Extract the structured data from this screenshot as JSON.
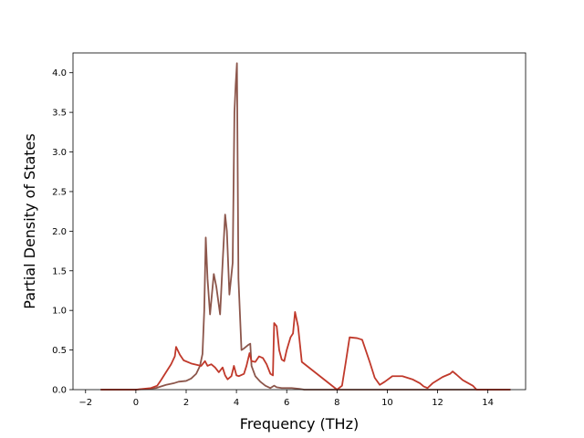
{
  "chart_data": {
    "type": "line",
    "xlabel": "Frequency (THz)",
    "ylabel": "Partial Density of States",
    "xlim": [
      -2.5,
      15.5
    ],
    "ylim": [
      0,
      4.25
    ],
    "xticks": [
      -2,
      0,
      2,
      4,
      6,
      8,
      10,
      12,
      14
    ],
    "yticks": [
      0.0,
      0.5,
      1.0,
      1.5,
      2.0,
      2.5,
      3.0,
      3.5,
      4.0
    ],
    "xtick_labels": [
      "−2",
      "0",
      "2",
      "4",
      "6",
      "8",
      "10",
      "12",
      "14"
    ],
    "ytick_labels": [
      "0.0",
      "0.5",
      "1.0",
      "1.5",
      "2.0",
      "2.5",
      "3.0",
      "3.5",
      "4.0"
    ],
    "grid": false,
    "legend": "none",
    "series": [
      {
        "color": "#8c564b",
        "x": [
          -1.4,
          0.0,
          0.5,
          0.8,
          1.0,
          1.2,
          1.5,
          1.7,
          2.0,
          2.2,
          2.4,
          2.55,
          2.65,
          2.72,
          2.78,
          2.85,
          2.95,
          3.1,
          3.2,
          3.35,
          3.45,
          3.55,
          3.62,
          3.72,
          3.85,
          3.92,
          3.97,
          4.02,
          4.08,
          4.2,
          4.3,
          4.45,
          4.55,
          4.6,
          4.75,
          4.95,
          5.15,
          5.35,
          5.5,
          5.6,
          5.8,
          6.0,
          6.2,
          6.5,
          6.7,
          14.9
        ],
        "y": [
          0.0,
          0.0,
          0.01,
          0.02,
          0.04,
          0.06,
          0.08,
          0.1,
          0.11,
          0.14,
          0.2,
          0.3,
          0.45,
          1.0,
          1.92,
          1.4,
          0.95,
          1.46,
          1.3,
          0.95,
          1.6,
          2.21,
          2.0,
          1.2,
          1.6,
          3.5,
          3.85,
          4.12,
          1.4,
          0.5,
          0.52,
          0.56,
          0.58,
          0.3,
          0.17,
          0.1,
          0.05,
          0.02,
          0.05,
          0.03,
          0.02,
          0.02,
          0.02,
          0.01,
          0.0,
          0.0
        ]
      },
      {
        "color": "#c0392b",
        "x": [
          -1.4,
          0.0,
          0.6,
          0.85,
          1.0,
          1.2,
          1.4,
          1.55,
          1.6,
          1.75,
          1.9,
          2.2,
          2.6,
          2.75,
          2.85,
          3.0,
          3.15,
          3.3,
          3.45,
          3.55,
          3.65,
          3.8,
          3.9,
          4.0,
          4.1,
          4.3,
          4.4,
          4.52,
          4.6,
          4.75,
          4.9,
          5.05,
          5.2,
          5.35,
          5.45,
          5.5,
          5.6,
          5.7,
          5.8,
          5.9,
          6.0,
          6.15,
          6.25,
          6.33,
          6.45,
          6.6,
          8.0,
          8.2,
          8.35,
          8.5,
          8.8,
          9.0,
          9.3,
          9.5,
          9.7,
          9.9,
          10.2,
          10.6,
          11.0,
          11.3,
          11.45,
          11.6,
          11.8,
          12.2,
          12.5,
          12.6,
          12.75,
          13.0,
          13.4,
          13.55,
          14.9
        ],
        "y": [
          0.0,
          0.0,
          0.02,
          0.05,
          0.12,
          0.22,
          0.32,
          0.42,
          0.54,
          0.44,
          0.37,
          0.33,
          0.3,
          0.36,
          0.3,
          0.32,
          0.28,
          0.22,
          0.28,
          0.18,
          0.13,
          0.17,
          0.3,
          0.18,
          0.17,
          0.2,
          0.3,
          0.46,
          0.36,
          0.35,
          0.42,
          0.4,
          0.32,
          0.2,
          0.18,
          0.84,
          0.8,
          0.5,
          0.38,
          0.36,
          0.5,
          0.66,
          0.71,
          0.98,
          0.8,
          0.35,
          0.0,
          0.05,
          0.35,
          0.66,
          0.65,
          0.63,
          0.35,
          0.15,
          0.06,
          0.1,
          0.17,
          0.17,
          0.13,
          0.08,
          0.04,
          0.02,
          0.08,
          0.16,
          0.2,
          0.23,
          0.19,
          0.12,
          0.05,
          0.0,
          0.0
        ]
      }
    ]
  }
}
